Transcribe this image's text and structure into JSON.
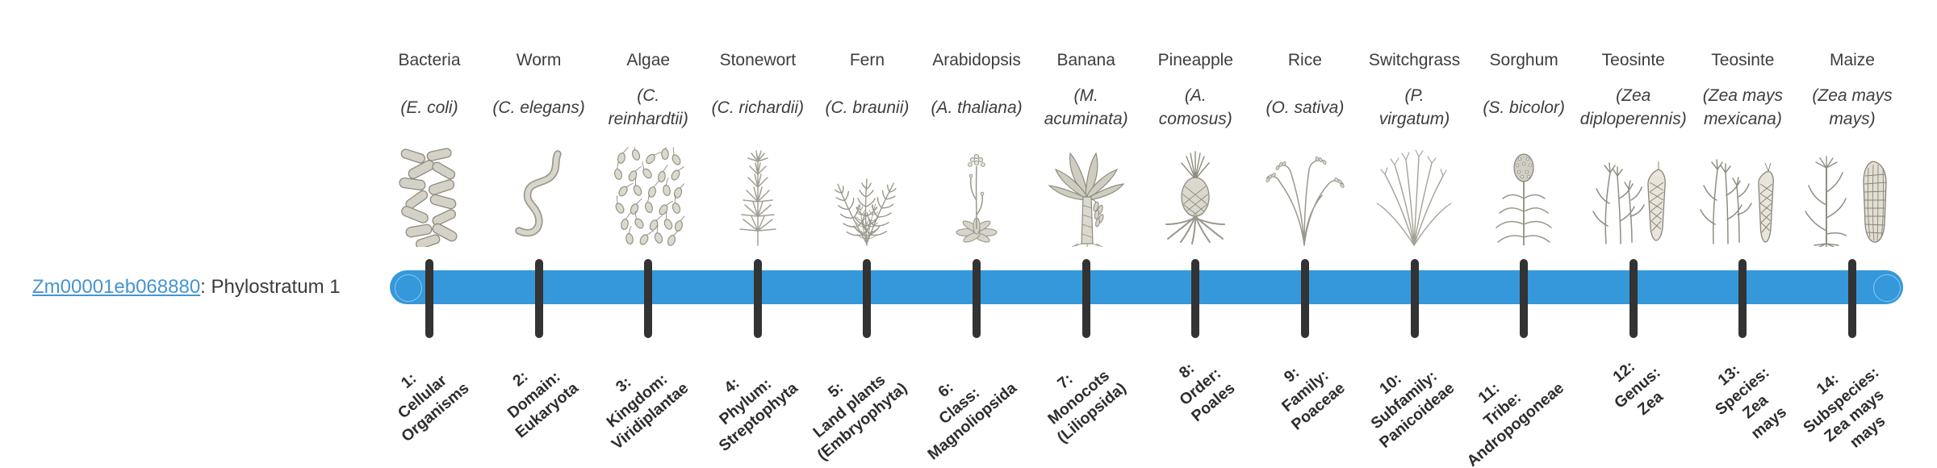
{
  "gene": {
    "id": "Zm00001eb068880",
    "suffix": ": Phylostratum 1"
  },
  "colors": {
    "bar": "#3498db",
    "tick": "#333333",
    "link": "#4595d1"
  },
  "organisms": [
    {
      "name": "Bacteria",
      "sci": "(E. coli)",
      "icon": "bacteria-icon",
      "stratum": "1:\nCellular\nOrganisms"
    },
    {
      "name": "Worm",
      "sci": "(C. elegans)",
      "icon": "worm-icon",
      "stratum": "2:\nDomain:\nEukaryota"
    },
    {
      "name": "Algae",
      "sci": "(C.\nreinhardtii)",
      "icon": "algae-icon",
      "stratum": "3:\nKingdom:\nViridiplantae"
    },
    {
      "name": "Stonewort",
      "sci": "(C. richardii)",
      "icon": "stonewort-icon",
      "stratum": "4:\nPhylum:\nStreptophyta"
    },
    {
      "name": "Fern",
      "sci": "(C. braunii)",
      "icon": "fern-icon",
      "stratum": "5:\nLand plants\n(Embryophyta)"
    },
    {
      "name": "Arabidopsis",
      "sci": "(A. thaliana)",
      "icon": "arabidopsis-icon",
      "stratum": "6:\nClass:\nMagnoliopsida"
    },
    {
      "name": "Banana",
      "sci": "(M.\nacuminata)",
      "icon": "banana-icon",
      "stratum": "7:\nMonocots\n(Liliopsida)"
    },
    {
      "name": "Pineapple",
      "sci": "(A.\ncomosus)",
      "icon": "pineapple-icon",
      "stratum": "8:\nOrder:\nPoales"
    },
    {
      "name": "Rice",
      "sci": "(O. sativa)",
      "icon": "rice-icon",
      "stratum": "9:\nFamily:\nPoaceae"
    },
    {
      "name": "Switchgrass",
      "sci": "(P.\nvirgatum)",
      "icon": "switchgrass-icon",
      "stratum": "10:\nSubfamily:\nPanicoideae"
    },
    {
      "name": "Sorghum",
      "sci": "(S. bicolor)",
      "icon": "sorghum-icon",
      "stratum": "11:\nTribe:\nAndropogoneae"
    },
    {
      "name": "Teosinte",
      "sci": "(Zea\ndiploperennis)",
      "icon": "teosinte-diploperennis-icon",
      "stratum": "12:\nGenus:\nZea"
    },
    {
      "name": "Teosinte",
      "sci": "(Zea mays\nmexicana)",
      "icon": "teosinte-mexicana-icon",
      "stratum": "13:\nSpecies:\nZea\nmays"
    },
    {
      "name": "Maize",
      "sci": "(Zea mays\nmays)",
      "icon": "maize-icon",
      "stratum": "14:\nSubspecies:\nZea mays\nmays"
    }
  ]
}
